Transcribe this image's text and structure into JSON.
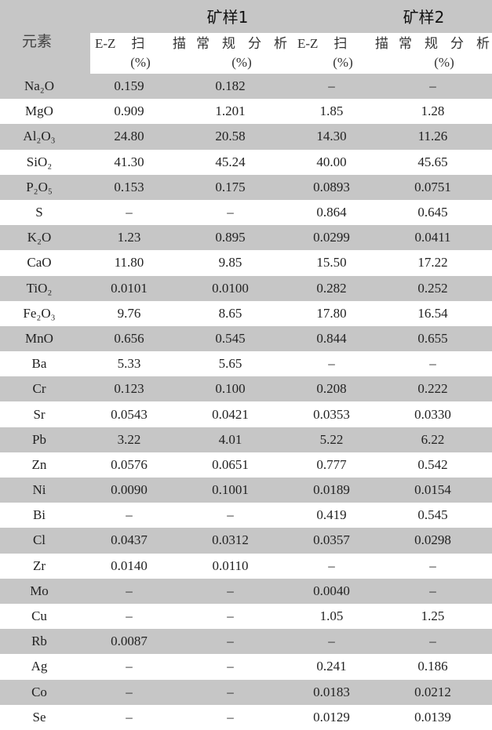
{
  "table": {
    "element_header": "元素",
    "groups": [
      "矿样1",
      "矿样2"
    ],
    "subheaders": [
      {
        "label": "E-Z 扫 描",
        "unit": "(%)"
      },
      {
        "label": "常 规 分 析",
        "unit": "(%)"
      },
      {
        "label": "E-Z 扫 描",
        "unit": "(%)"
      },
      {
        "label": "常 规 分 析",
        "unit": "(%)"
      }
    ],
    "rows": [
      [
        "Na₂O",
        "0.159",
        "0.182",
        "–",
        "–"
      ],
      [
        "MgO",
        "0.909",
        "1.201",
        "1.85",
        "1.28"
      ],
      [
        "Al₂O₃",
        "24.80",
        "20.58",
        "14.30",
        "11.26"
      ],
      [
        "SiO₂",
        "41.30",
        "45.24",
        "40.00",
        "45.65"
      ],
      [
        "P₂O₅",
        "0.153",
        "0.175",
        "0.0893",
        "0.0751"
      ],
      [
        "S",
        "–",
        "–",
        "0.864",
        "0.645"
      ],
      [
        "K₂O",
        "1.23",
        "0.895",
        "0.0299",
        "0.0411"
      ],
      [
        "CaO",
        "11.80",
        "9.85",
        "15.50",
        "17.22"
      ],
      [
        "TiO₂",
        "0.0101",
        "0.0100",
        "0.282",
        "0.252"
      ],
      [
        "Fe₂O₃",
        "9.76",
        "8.65",
        "17.80",
        "16.54"
      ],
      [
        "MnO",
        "0.656",
        "0.545",
        "0.844",
        "0.655"
      ],
      [
        "Ba",
        "5.33",
        "5.65",
        "–",
        "–"
      ],
      [
        "Cr",
        "0.123",
        "0.100",
        "0.208",
        "0.222"
      ],
      [
        "Sr",
        "0.0543",
        "0.0421",
        "0.0353",
        "0.0330"
      ],
      [
        "Pb",
        "3.22",
        "4.01",
        "5.22",
        "6.22"
      ],
      [
        "Zn",
        "0.0576",
        "0.0651",
        "0.777",
        "0.542"
      ],
      [
        "Ni",
        "0.0090",
        "0.1001",
        "0.0189",
        "0.0154"
      ],
      [
        "Bi",
        "–",
        "–",
        "0.419",
        "0.545"
      ],
      [
        "Cl",
        "0.0437",
        "0.0312",
        "0.0357",
        "0.0298"
      ],
      [
        "Zr",
        "0.0140",
        "0.0110",
        "–",
        "–"
      ],
      [
        "Mo",
        "–",
        "–",
        "0.0040",
        "–"
      ],
      [
        "Cu",
        "–",
        "–",
        "1.05",
        "1.25"
      ],
      [
        "Rb",
        "0.0087",
        "–",
        "–",
        "–"
      ],
      [
        "Ag",
        "–",
        "–",
        "0.241",
        "0.186"
      ],
      [
        "Co",
        "–",
        "–",
        "0.0183",
        "0.0212"
      ],
      [
        "Se",
        "–",
        "–",
        "0.0129",
        "0.0139"
      ]
    ]
  },
  "colors": {
    "stripe": "#c6c6c6",
    "background": "#ffffff"
  }
}
